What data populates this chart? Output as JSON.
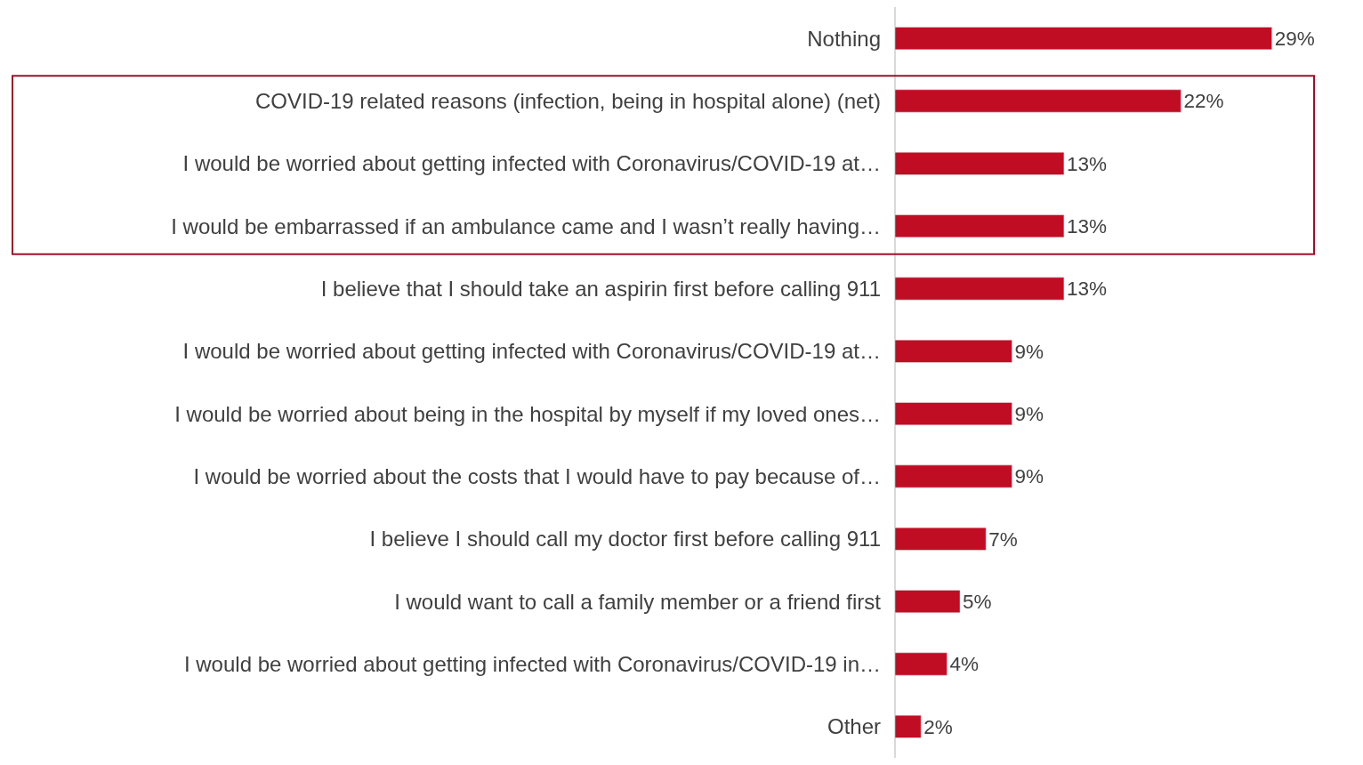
{
  "chart_data": {
    "type": "bar",
    "orientation": "horizontal",
    "categories": [
      "Nothing",
      "COVID-19 related reasons (infection, being in hospital alone) (net)",
      "I would be worried about getting infected with Coronavirus/COVID-19 at…",
      "I would be embarrassed if an ambulance came and I wasn’t really having…",
      "I believe that I should take an aspirin first before calling 911",
      "I would be worried about getting infected with Coronavirus/COVID-19 at…",
      "I would be worried about being in the hospital by myself if my loved ones…",
      "I would be worried about the costs that I would have to pay because of…",
      "I believe I should call my doctor first before calling 911",
      "I would want to call a family member or a friend first",
      "I would be worried about getting infected with Coronavirus/COVID-19 in…",
      "Other"
    ],
    "values": [
      29,
      22,
      13,
      13,
      13,
      9,
      9,
      9,
      7,
      5,
      4,
      2
    ],
    "value_labels": [
      "29%",
      "22%",
      "13%",
      "13%",
      "13%",
      "9%",
      "9%",
      "9%",
      "7%",
      "5%",
      "4%",
      "2%"
    ],
    "color": "#c00d23",
    "grid": false,
    "legend": false
  }
}
